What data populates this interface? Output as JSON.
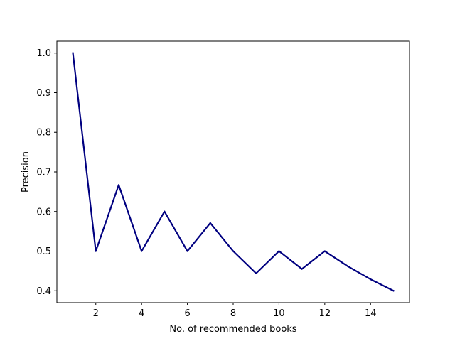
{
  "chart_data": {
    "type": "line",
    "title": "",
    "xlabel": "No. of recommended books",
    "ylabel": "Precision",
    "xlim": [
      0.3,
      15.7
    ],
    "ylim": [
      0.37,
      1.03
    ],
    "x_ticks": [
      2,
      4,
      6,
      8,
      10,
      12,
      14
    ],
    "y_ticks": [
      0.4,
      0.5,
      0.6,
      0.7,
      0.8,
      0.9,
      1.0
    ],
    "y_tick_labels": [
      "0.4",
      "0.5",
      "0.6",
      "0.7",
      "0.8",
      "0.9",
      "1.0"
    ],
    "grid": false,
    "legend": "none",
    "series": [
      {
        "color": "#000080",
        "x": [
          1,
          2,
          3,
          4,
          5,
          6,
          7,
          8,
          9,
          10,
          11,
          12,
          13,
          14,
          15
        ],
        "y": [
          1.0,
          0.5,
          0.667,
          0.5,
          0.6,
          0.5,
          0.571,
          0.5,
          0.444,
          0.5,
          0.455,
          0.5,
          0.462,
          0.429,
          0.4
        ]
      }
    ]
  }
}
